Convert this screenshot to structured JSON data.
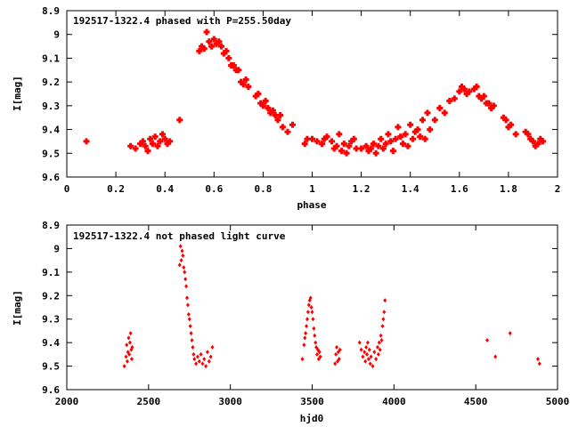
{
  "colors": {
    "points": "#ff0000",
    "axes": "#000000",
    "background": "#ffffff"
  },
  "chart_data": [
    {
      "type": "scatter",
      "title": "192517-1322.4 phased with P=255.50day",
      "xlabel": "phase",
      "ylabel": "I[mag]",
      "xlim": [
        0,
        2
      ],
      "ylim": [
        8.9,
        9.6
      ],
      "y_inverted": true,
      "grid": false,
      "xticks": [
        "0",
        "0.2",
        "0.4",
        "0.6",
        "0.8",
        "1",
        "1.2",
        "1.4",
        "1.6",
        "1.8",
        "2"
      ],
      "yticks": [
        "8.9",
        "9",
        "9.1",
        "9.2",
        "9.3",
        "9.4",
        "9.5",
        "9.6"
      ],
      "x": [
        0.08,
        0.26,
        0.28,
        0.3,
        0.31,
        0.32,
        0.33,
        0.34,
        0.35,
        0.36,
        0.37,
        0.38,
        0.39,
        0.4,
        0.41,
        0.42,
        0.46,
        0.54,
        0.55,
        0.56,
        0.57,
        0.58,
        0.59,
        0.6,
        0.61,
        0.62,
        0.63,
        0.64,
        0.65,
        0.66,
        0.67,
        0.68,
        0.69,
        0.7,
        0.71,
        0.72,
        0.73,
        0.74,
        0.77,
        0.78,
        0.79,
        0.8,
        0.81,
        0.82,
        0.83,
        0.84,
        0.85,
        0.86,
        0.87,
        0.88,
        0.9,
        0.92,
        0.97,
        0.98,
        1.0,
        1.02,
        1.04,
        1.05,
        1.06,
        1.08,
        1.09,
        1.1,
        1.11,
        1.12,
        1.13,
        1.14,
        1.15,
        1.16,
        1.17,
        1.18,
        1.2,
        1.22,
        1.23,
        1.24,
        1.25,
        1.26,
        1.27,
        1.28,
        1.29,
        1.3,
        1.31,
        1.32,
        1.33,
        1.34,
        1.35,
        1.36,
        1.37,
        1.38,
        1.39,
        1.4,
        1.41,
        1.42,
        1.43,
        1.44,
        1.45,
        1.46,
        1.47,
        1.48,
        1.5,
        1.52,
        1.54,
        1.56,
        1.58,
        1.6,
        1.61,
        1.62,
        1.63,
        1.64,
        1.66,
        1.67,
        1.68,
        1.69,
        1.7,
        1.71,
        1.72,
        1.73,
        1.74,
        1.78,
        1.79,
        1.8,
        1.81,
        1.83,
        1.87,
        1.88,
        1.89,
        1.9,
        1.91,
        1.92,
        1.93,
        1.94
      ],
      "y": [
        9.45,
        9.47,
        9.48,
        9.46,
        9.45,
        9.47,
        9.49,
        9.44,
        9.46,
        9.43,
        9.47,
        9.45,
        9.42,
        9.44,
        9.46,
        9.45,
        9.36,
        9.07,
        9.05,
        9.06,
        8.99,
        9.03,
        9.05,
        9.02,
        9.04,
        9.03,
        9.05,
        9.08,
        9.07,
        9.1,
        9.13,
        9.13,
        9.15,
        9.15,
        9.2,
        9.21,
        9.19,
        9.22,
        9.26,
        9.25,
        9.29,
        9.3,
        9.28,
        9.31,
        9.33,
        9.32,
        9.34,
        9.36,
        9.34,
        9.39,
        9.41,
        9.38,
        9.46,
        9.44,
        9.44,
        9.45,
        9.46,
        9.44,
        9.43,
        9.45,
        9.48,
        9.47,
        9.42,
        9.49,
        9.46,
        9.5,
        9.47,
        9.45,
        9.44,
        9.48,
        9.48,
        9.47,
        9.49,
        9.48,
        9.46,
        9.5,
        9.47,
        9.44,
        9.48,
        9.46,
        9.42,
        9.45,
        9.49,
        9.44,
        9.39,
        9.43,
        9.46,
        9.42,
        9.47,
        9.38,
        9.44,
        9.41,
        9.4,
        9.43,
        9.36,
        9.44,
        9.33,
        9.4,
        9.36,
        9.31,
        9.33,
        9.28,
        9.27,
        9.24,
        9.22,
        9.23,
        9.25,
        9.24,
        9.23,
        9.22,
        9.26,
        9.27,
        9.26,
        9.29,
        9.29,
        9.31,
        9.3,
        9.35,
        9.36,
        9.39,
        9.38,
        9.42,
        9.41,
        9.42,
        9.44,
        9.45,
        9.47,
        9.46,
        9.44,
        9.45
      ]
    },
    {
      "type": "scatter",
      "title": "192517-1322.4 not phased light curve",
      "xlabel": "hjd0",
      "ylabel": "I[mag]",
      "xlim": [
        2000,
        5000
      ],
      "ylim": [
        8.9,
        9.6
      ],
      "y_inverted": true,
      "grid": false,
      "xticks": [
        "2000",
        "2500",
        "3000",
        "3500",
        "4000",
        "4500",
        "5000"
      ],
      "yticks": [
        "8.9",
        "9",
        "9.1",
        "9.2",
        "9.3",
        "9.4",
        "9.5",
        "9.6"
      ],
      "x": [
        2352,
        2362,
        2366,
        2370,
        2374,
        2378,
        2382,
        2386,
        2390,
        2394,
        2397,
        2400,
        2690,
        2695,
        2700,
        2705,
        2710,
        2715,
        2720,
        2725,
        2730,
        2735,
        2740,
        2745,
        2750,
        2755,
        2760,
        2765,
        2770,
        2775,
        2780,
        2790,
        2800,
        2810,
        2820,
        2830,
        2840,
        2850,
        2860,
        2870,
        2880,
        2890,
        3440,
        3450,
        3455,
        3460,
        3465,
        3470,
        3475,
        3480,
        3485,
        3490,
        3495,
        3500,
        3505,
        3510,
        3515,
        3520,
        3525,
        3530,
        3535,
        3540,
        3545,
        3550,
        3640,
        3645,
        3650,
        3655,
        3660,
        3665,
        3670,
        3790,
        3800,
        3810,
        3820,
        3825,
        3830,
        3835,
        3840,
        3845,
        3850,
        3855,
        3860,
        3870,
        3880,
        3890,
        3900,
        3905,
        3910,
        3915,
        3920,
        3925,
        3930,
        3935,
        3940,
        3945,
        4570,
        4620,
        4710,
        4880,
        4890
      ],
      "y": [
        9.5,
        9.46,
        9.41,
        9.48,
        9.44,
        9.38,
        9.45,
        9.4,
        9.36,
        9.43,
        9.47,
        9.42,
        9.07,
        8.99,
        9.05,
        9.01,
        9.03,
        9.08,
        9.1,
        9.13,
        9.16,
        9.21,
        9.24,
        9.28,
        9.3,
        9.33,
        9.36,
        9.39,
        9.42,
        9.45,
        9.47,
        9.49,
        9.46,
        9.48,
        9.45,
        9.49,
        9.47,
        9.5,
        9.44,
        9.48,
        9.46,
        9.42,
        9.47,
        9.41,
        9.38,
        9.36,
        9.33,
        9.3,
        9.27,
        9.24,
        9.22,
        9.21,
        9.25,
        9.27,
        9.3,
        9.34,
        9.37,
        9.4,
        9.42,
        9.45,
        9.43,
        9.47,
        9.44,
        9.46,
        9.49,
        9.45,
        9.42,
        9.48,
        9.44,
        9.47,
        9.43,
        9.4,
        9.43,
        9.46,
        9.44,
        9.48,
        9.42,
        9.45,
        9.4,
        9.47,
        9.43,
        9.49,
        9.46,
        9.5,
        9.44,
        9.47,
        9.42,
        9.45,
        9.4,
        9.43,
        9.37,
        9.39,
        9.33,
        9.3,
        9.27,
        9.22,
        9.39,
        9.46,
        9.36,
        9.47,
        9.49
      ]
    }
  ]
}
